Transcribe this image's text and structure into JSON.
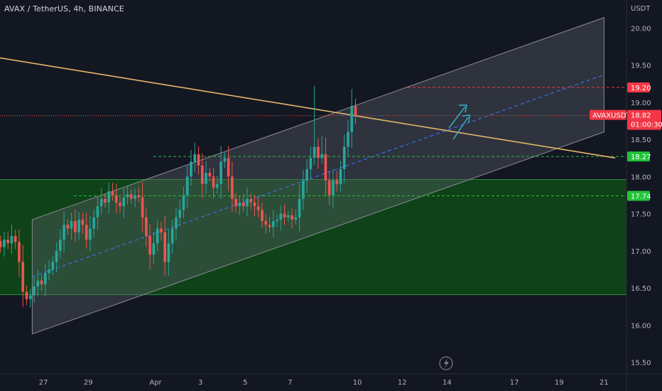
{
  "header": {
    "title": "AVAX / TetherUS, 4h, BINANCE"
  },
  "price_axis": {
    "unit": "USDT"
  },
  "current_price": {
    "symbol": "AVAXUSDT",
    "value": "18.82",
    "countdown": "01:00:30",
    "color": "#f23645"
  },
  "price_markers": [
    {
      "value": "19.20",
      "price": 19.2,
      "color": "#f23645",
      "line": "#f23645"
    },
    {
      "value": "18.27",
      "price": 18.27,
      "color": "#22c33a",
      "line": "#22c33a"
    },
    {
      "value": "17.74",
      "price": 17.74,
      "color": "#22c33a",
      "line": "#22c33a"
    }
  ],
  "colors": {
    "up": "#26a69a",
    "down": "#ef5350",
    "trendline": "#e3b56b",
    "midline": "#3d6ef0",
    "channel_fill": "#5d606b",
    "green_zone": "#0f4a16",
    "arrow": "#36b8c9"
  },
  "icons": {
    "bottom": "lightning-icon"
  },
  "chart_data": {
    "type": "candlestick",
    "title": "AVAX / TetherUS, 4h, BINANCE",
    "xlabel": "",
    "ylabel": "USDT",
    "ylim": [
      15.4,
      20.3
    ],
    "x_start": "2023-03-25",
    "x_end": "2023-04-22",
    "x_ticks": [
      {
        "label": "27",
        "date": "2023-03-27"
      },
      {
        "label": "29",
        "date": "2023-03-29"
      },
      {
        "label": "Apr",
        "date": "2023-04-01"
      },
      {
        "label": "3",
        "date": "2023-04-03"
      },
      {
        "label": "5",
        "date": "2023-04-05"
      },
      {
        "label": "7",
        "date": "2023-04-07"
      },
      {
        "label": "10",
        "date": "2023-04-10"
      },
      {
        "label": "12",
        "date": "2023-04-12"
      },
      {
        "label": "14",
        "date": "2023-04-14"
      },
      {
        "label": "17",
        "date": "2023-04-17"
      },
      {
        "label": "19",
        "date": "2023-04-19"
      },
      {
        "label": "21",
        "date": "2023-04-21"
      }
    ],
    "y_ticks": [
      "20.00",
      "19.50",
      "19.00",
      "18.50",
      "18.00",
      "17.50",
      "17.00",
      "16.50",
      "16.00",
      "15.50"
    ],
    "grid": false,
    "candle_interval": "4h",
    "first_candle": "2023-03-25T00:00",
    "closes": [
      17.05,
      17.15,
      17.1,
      17.2,
      17.12,
      16.85,
      16.45,
      16.35,
      16.4,
      16.52,
      16.6,
      16.55,
      16.7,
      16.75,
      16.85,
      17.0,
      17.15,
      17.35,
      17.3,
      17.4,
      17.25,
      17.42,
      17.35,
      17.15,
      17.3,
      17.45,
      17.6,
      17.7,
      17.65,
      17.8,
      17.75,
      17.65,
      17.6,
      17.72,
      17.76,
      17.7,
      17.75,
      17.72,
      17.45,
      17.2,
      16.95,
      17.1,
      17.3,
      17.25,
      16.85,
      17.1,
      17.3,
      17.45,
      17.55,
      17.75,
      18.0,
      18.2,
      18.3,
      18.15,
      17.9,
      18.05,
      18.0,
      17.85,
      17.9,
      18.2,
      18.25,
      18.0,
      17.7,
      17.6,
      17.65,
      17.6,
      17.7,
      17.65,
      17.6,
      17.55,
      17.4,
      17.35,
      17.32,
      17.4,
      17.42,
      17.5,
      17.45,
      17.48,
      17.42,
      17.45,
      17.7,
      17.95,
      18.1,
      18.25,
      18.4,
      18.25,
      18.3,
      17.95,
      17.75,
      17.95,
      17.9,
      18.1,
      18.4,
      18.6,
      18.95,
      18.82
    ],
    "channel": {
      "lower": {
        "start": [
          "2023-03-26T12:00",
          15.88
        ],
        "end": [
          "2023-04-21T00:00",
          18.6
        ]
      },
      "upper": {
        "start": [
          "2023-03-26T12:00",
          17.42
        ],
        "end": [
          "2023-04-21T00:00",
          20.14
        ]
      },
      "mid": {
        "start": [
          "2023-03-26T12:00",
          16.65
        ],
        "end": [
          "2023-04-21T00:00",
          19.37
        ]
      }
    },
    "trendline": {
      "start": [
        "2023-03-25T00:00",
        19.6
      ],
      "end": [
        "2023-04-21T12:00",
        18.25
      ]
    },
    "green_zone": [
      16.41,
      17.96
    ]
  }
}
